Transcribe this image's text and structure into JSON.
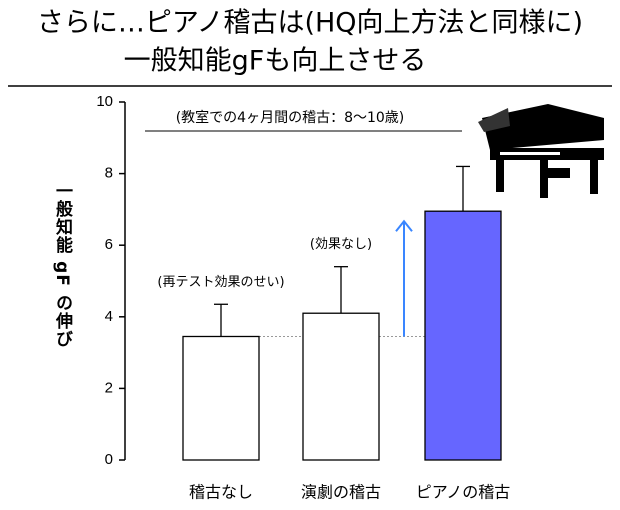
{
  "chart_data": {
    "type": "bar",
    "title_lines": [
      "さらに…ピアノ稽古は(HQ向上方法と同様に)",
      "一般知能gFも向上させる"
    ],
    "ylabel": "一般知能 gF の伸び",
    "annotation": "(教室での4ヶ月間の稽古：8〜10歳)",
    "categories": [
      "稽古なし",
      "演劇の稽古",
      "ピアノの稽古"
    ],
    "values": [
      3.45,
      4.1,
      6.95
    ],
    "errors": [
      0.9,
      1.3,
      1.25
    ],
    "colors": [
      "#ffffff",
      "#ffffff",
      "#6666ff"
    ],
    "bar_notes": [
      "(再テスト効果のせい)",
      "(効果なし)",
      null
    ],
    "ylim": [
      0,
      10
    ],
    "yticks": [
      0,
      2,
      4,
      6,
      8,
      10
    ]
  }
}
